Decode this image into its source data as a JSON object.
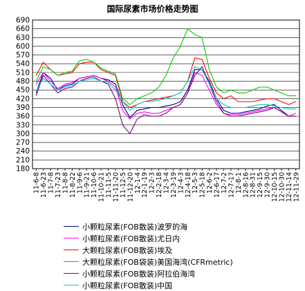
{
  "chart_data": {
    "type": "line",
    "title": "国际尿素市场价格走势图",
    "xlabel": "",
    "ylabel": "",
    "ylim": [
      180,
      690
    ],
    "y_ticks": [
      180,
      210,
      240,
      270,
      300,
      330,
      360,
      390,
      420,
      450,
      480,
      510,
      540,
      570,
      600,
      630,
      660,
      690
    ],
    "grid": "horizontal",
    "legend": "bottom",
    "categories": [
      "11-6-8",
      "11-6-23",
      "11-7-8",
      "11-7-23",
      "11-8-8",
      "11-8-22",
      "11-9-6",
      "11-9-21",
      "11-10-6",
      "11-10-21",
      "11-11-5",
      "11-11-20",
      "11-12-5",
      "11-12-20",
      "12-1-4",
      "12-1-19",
      "12-2-3",
      "12-2-18",
      "12-3-4",
      "12-3-19",
      "12-4-3",
      "12-4-18",
      "12-5-3",
      "12-5-18",
      "12-6-2",
      "12-6-17",
      "12-7-2",
      "12-7-17",
      "12-8-1",
      "12-8-16",
      "12-8-31",
      "12-9-15",
      "12-9-30",
      "12-10-15",
      "12-10-30",
      "12-11-14",
      "12-11-29"
    ],
    "series": [
      {
        "name": "小颗粒尿素(FOB散装)波罗的海",
        "color": "#000080",
        "values": [
          440,
          510,
          490,
          450,
          465,
          470,
          490,
          495,
          500,
          490,
          485,
          470,
          400,
          355,
          380,
          385,
          390,
          390,
          395,
          400,
          410,
          450,
          520,
          520,
          480,
          420,
          380,
          370,
          370,
          375,
          380,
          385,
          395,
          400,
          380,
          360,
          360
        ]
      },
      {
        "name": "小颗粒尿素(FOB散装)尤日内",
        "color": "#ff00ff",
        "values": [
          470,
          510,
          480,
          455,
          470,
          475,
          490,
          495,
          500,
          490,
          480,
          460,
          380,
          350,
          370,
          375,
          370,
          370,
          380,
          390,
          400,
          440,
          510,
          500,
          450,
          400,
          370,
          365,
          365,
          370,
          375,
          380,
          385,
          390,
          375,
          360,
          370
        ]
      },
      {
        "name": "大颗粒尿素(FOB散装)埃及",
        "color": "#ff0000",
        "values": [
          500,
          545,
          520,
          500,
          505,
          510,
          540,
          545,
          545,
          520,
          510,
          500,
          410,
          390,
          400,
          410,
          415,
          420,
          425,
          430,
          440,
          480,
          560,
          555,
          490,
          440,
          420,
          430,
          410,
          410,
          410,
          415,
          420,
          420,
          410,
          400,
          410
        ]
      },
      {
        "name": "大颗粒尿素(FOB袋装)美国海湾(CFRmetric)",
        "color": "#00cc00",
        "values": [
          480,
          530,
          520,
          500,
          510,
          515,
          550,
          555,
          545,
          525,
          515,
          505,
          420,
          400,
          420,
          430,
          440,
          460,
          500,
          560,
          600,
          660,
          640,
          630,
          520,
          460,
          440,
          450,
          440,
          440,
          450,
          460,
          460,
          450,
          440,
          430,
          430
        ]
      },
      {
        "name": "小颗粒尿素(FOB散装)阿拉伯海湾",
        "color": "#800080",
        "values": [
          430,
          500,
          470,
          440,
          455,
          460,
          480,
          490,
          495,
          480,
          470,
          420,
          330,
          300,
          350,
          365,
          360,
          360,
          370,
          390,
          400,
          440,
          500,
          530,
          470,
          410,
          370,
          360,
          360,
          365,
          370,
          375,
          380,
          390,
          375,
          360,
          360
        ]
      },
      {
        "name": "小颗粒尿素(FOB散装)中国",
        "color": "#00cccc",
        "values": [
          445,
          490,
          470,
          450,
          460,
          465,
          480,
          485,
          490,
          480,
          475,
          450,
          410,
          380,
          400,
          410,
          410,
          415,
          420,
          430,
          440,
          480,
          530,
          520,
          470,
          420,
          400,
          390,
          390,
          390,
          395,
          400,
          400,
          395,
          390,
          385,
          385
        ]
      }
    ]
  }
}
